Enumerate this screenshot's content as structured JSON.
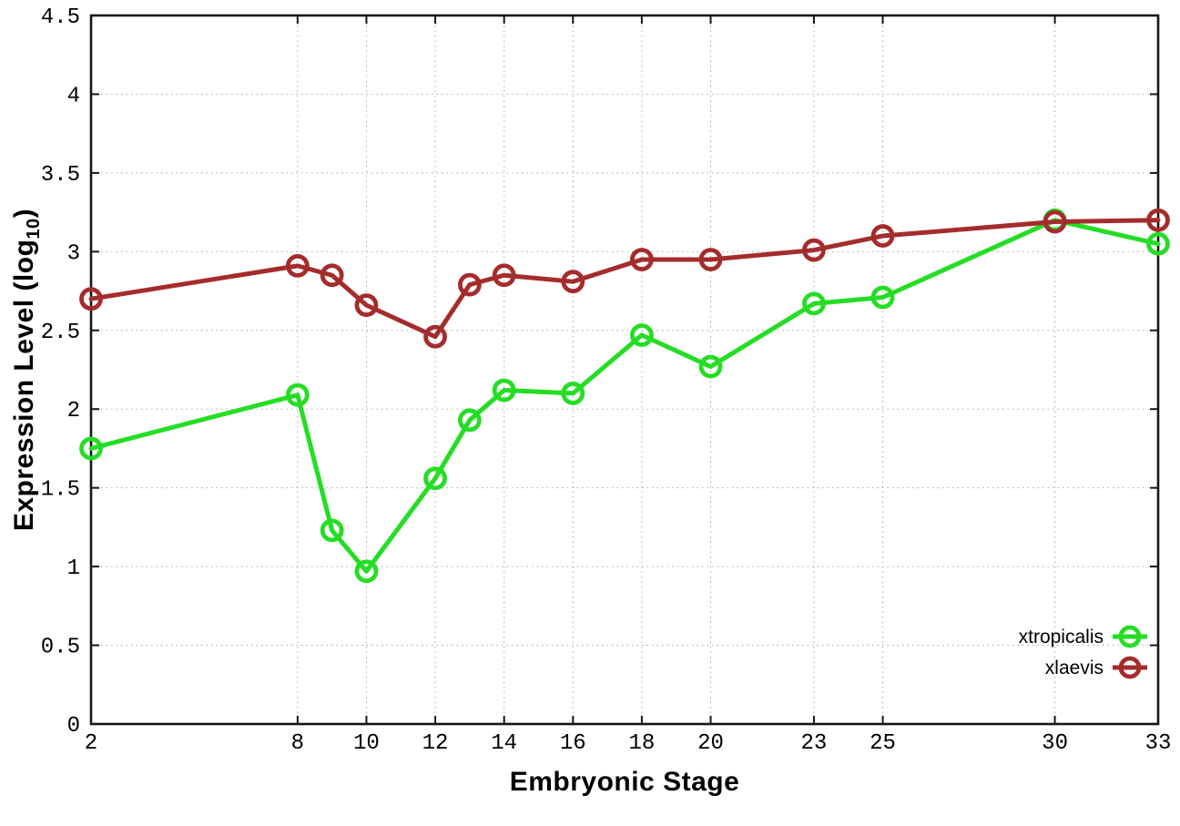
{
  "chart_data": {
    "type": "line",
    "title": "",
    "xlabel": "Embryonic Stage",
    "ylabel": {
      "main": "Expression Level (log",
      "sub": "10",
      "end": ")"
    },
    "xlim": [
      2,
      33
    ],
    "ylim": [
      0,
      4.5
    ],
    "x_ticks": [
      2,
      8,
      10,
      12,
      14,
      16,
      18,
      20,
      23,
      25,
      30,
      33
    ],
    "x_tick_labels": [
      "2",
      "8",
      "10",
      "12",
      "14",
      "16",
      "18",
      "20",
      "23",
      "25",
      "30",
      "33"
    ],
    "y_ticks": [
      0,
      0.5,
      1,
      1.5,
      2,
      2.5,
      3,
      3.5,
      4,
      4.5
    ],
    "y_tick_labels": [
      "0",
      "0.5",
      "1",
      "1.5",
      "2",
      "2.5",
      "3",
      "3.5",
      "4",
      "4.5"
    ],
    "grid": true,
    "legend_position": "bottom-right-inside",
    "marker": "open-circle",
    "x": [
      2,
      8,
      9,
      10,
      12,
      13,
      14,
      16,
      18,
      20,
      23,
      25,
      30,
      33
    ],
    "series": [
      {
        "name": "xtropicalis",
        "color": "#24dd24",
        "values": [
          1.75,
          2.09,
          1.23,
          0.97,
          1.56,
          1.93,
          2.12,
          2.1,
          2.47,
          2.27,
          2.67,
          2.71,
          3.2,
          3.05
        ]
      },
      {
        "name": "xlaevis",
        "color": "#a52c2c",
        "values": [
          2.7,
          2.91,
          2.85,
          2.66,
          2.46,
          2.79,
          2.85,
          2.81,
          2.95,
          2.95,
          3.01,
          3.1,
          3.19,
          3.2
        ]
      }
    ],
    "colors": {
      "border": "#161616",
      "grid": "#a8a8a8",
      "text": "#000000",
      "background": "#ffffff"
    }
  }
}
